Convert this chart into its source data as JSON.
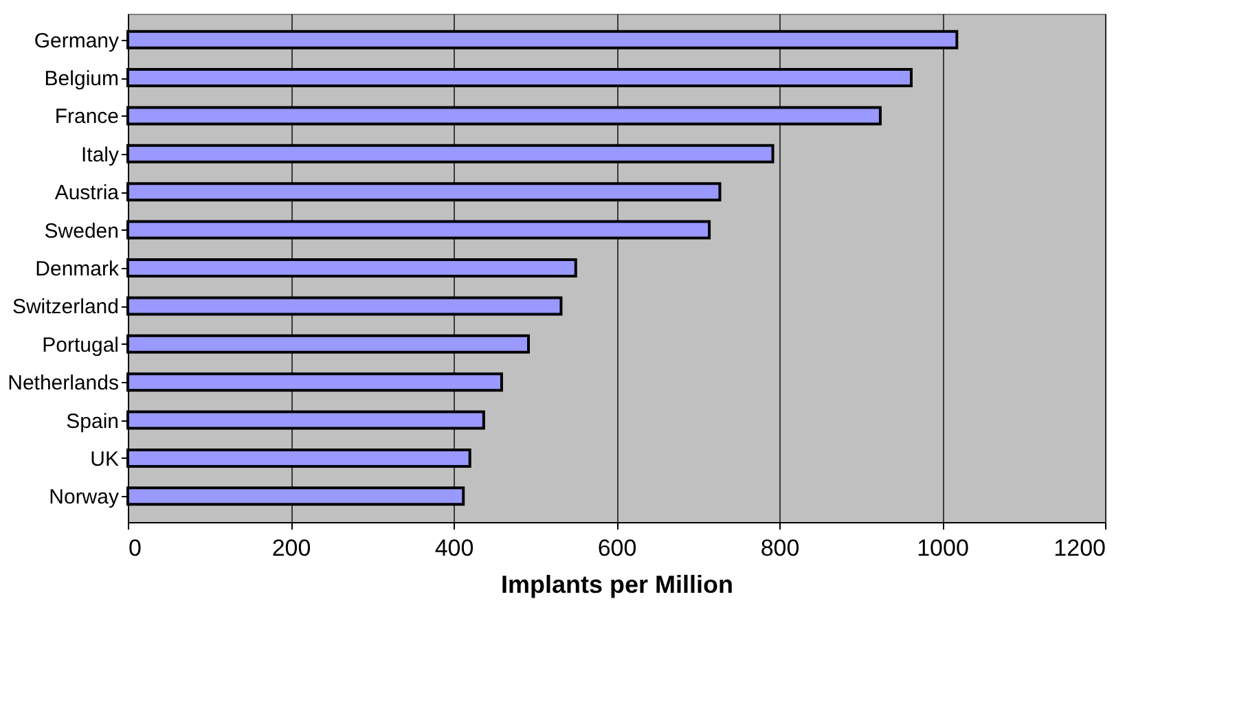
{
  "chart_data": {
    "type": "bar",
    "orientation": "horizontal",
    "xlabel": "Implants per Million",
    "categories": [
      "Germany",
      "Belgium",
      "France",
      "Italy",
      "Austria",
      "Sweden",
      "Denmark",
      "Switzerland",
      "Portugal",
      "Netherlands",
      "Spain",
      "UK",
      "Norway"
    ],
    "values": [
      1018,
      962,
      924,
      792,
      727,
      714,
      550,
      532,
      492,
      459,
      437,
      420,
      412
    ],
    "color": "#9999ff",
    "xlim": [
      0,
      1200
    ],
    "xticks": [
      0,
      200,
      400,
      600,
      800,
      1000,
      1200
    ],
    "grid": "x"
  }
}
